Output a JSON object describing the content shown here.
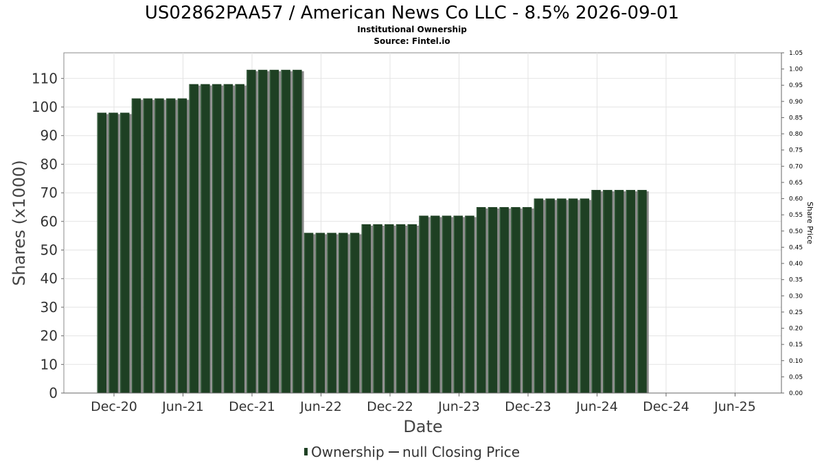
{
  "chart_data": {
    "type": "bar",
    "title": "US02862PAA57 / American News Co LLC - 8.5% 2026-09-01",
    "subtitle": "Institutional Ownership",
    "source": "Source: Fintel.io",
    "xlabel": "Date",
    "ylabel": "Shares (x1000)",
    "y2label": "Share Price",
    "x_ticks": [
      "Dec-20",
      "Jun-21",
      "Dec-21",
      "Jun-22",
      "Dec-22",
      "Jun-23",
      "Dec-23",
      "Jun-24",
      "Dec-24",
      "Jun-25"
    ],
    "ylim": [
      0,
      118
    ],
    "y_ticks": [
      0,
      10,
      20,
      30,
      40,
      50,
      60,
      70,
      80,
      90,
      100,
      110
    ],
    "y2lim": [
      0,
      1.05
    ],
    "y2_ticks": [
      "0.00",
      "0.05",
      "0.10",
      "0.15",
      "0.20",
      "0.25",
      "0.30",
      "0.35",
      "0.40",
      "0.45",
      "0.50",
      "0.55",
      "0.60",
      "0.65",
      "0.70",
      "0.75",
      "0.80",
      "0.85",
      "0.90",
      "0.95",
      "1.00",
      "1.05"
    ],
    "grid": true,
    "legend_position": "bottom",
    "series": [
      {
        "name": "Ownership",
        "color": "#1e4023",
        "values": [
          98,
          98,
          98,
          103,
          103,
          103,
          103,
          103,
          108,
          108,
          108,
          108,
          108,
          113,
          113,
          113,
          113,
          113,
          56,
          56,
          56,
          56,
          56,
          59,
          59,
          59,
          59,
          59,
          62,
          62,
          62,
          62,
          62,
          65,
          65,
          65,
          65,
          65,
          68,
          68,
          68,
          68,
          68,
          71,
          71,
          71,
          71,
          71
        ]
      },
      {
        "name": "null Closing Price",
        "color": "#333333",
        "values": []
      }
    ]
  }
}
